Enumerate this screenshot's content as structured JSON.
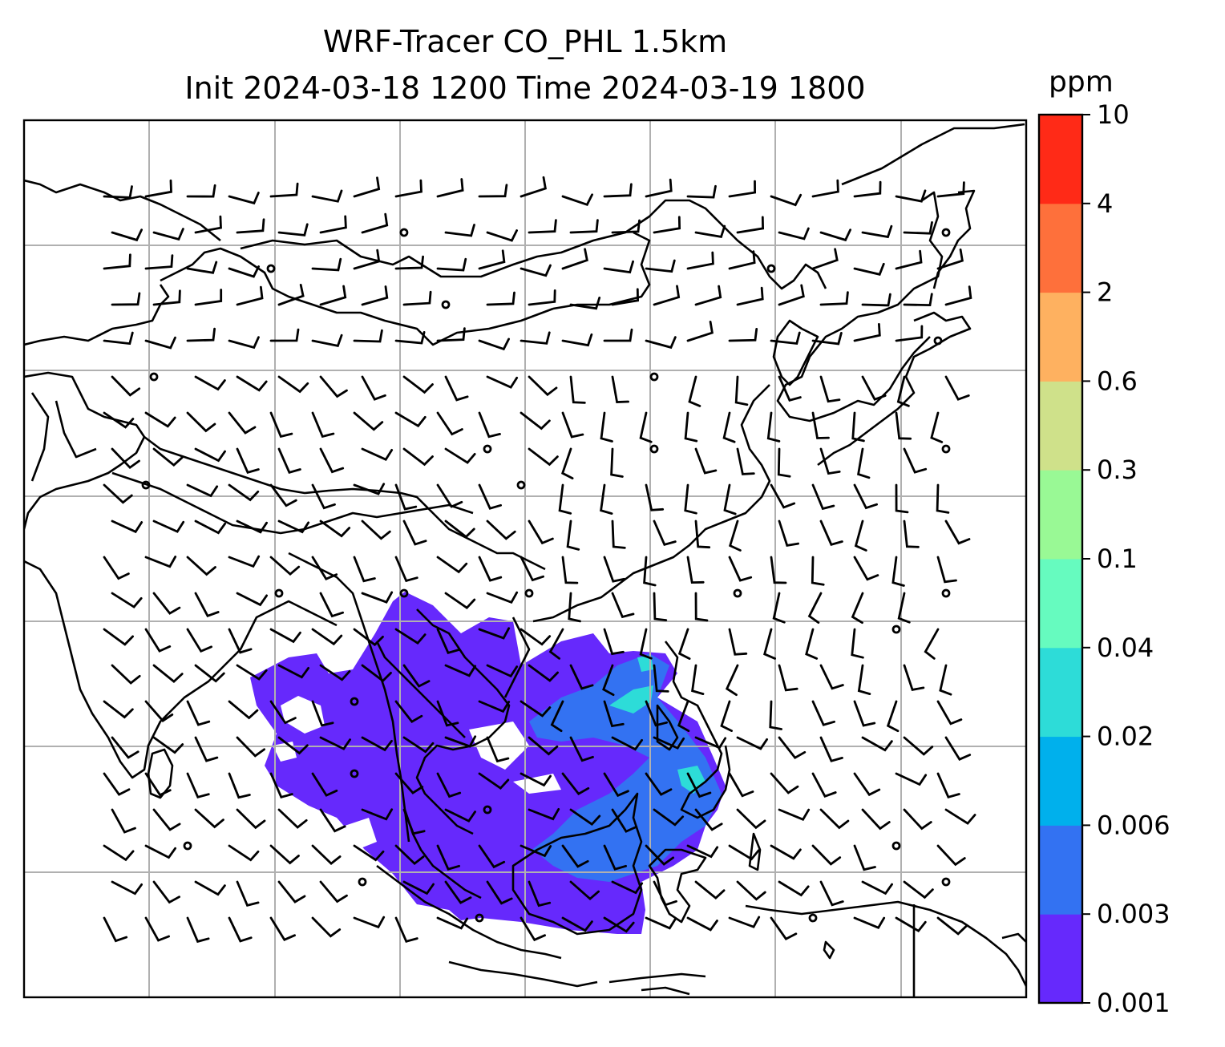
{
  "title_line1": "WRF-Tracer CO_PHL 1.5km",
  "title_line2": "Init 2024-03-18 1200 Time 2024-03-19 1800",
  "colorbar": {
    "unit": "ppm",
    "levels": [
      "0.001",
      "0.003",
      "0.006",
      "0.02",
      "0.04",
      "0.1",
      "0.3",
      "0.6",
      "2",
      "4",
      "10"
    ],
    "colors": [
      "#6629fc",
      "#3372f2",
      "#00b0ec",
      "#2ddcd8",
      "#66fbbf",
      "#99f995",
      "#cfe18a",
      "#feb160",
      "#fe703b",
      "#ff2a17"
    ]
  },
  "map": {
    "land_outline_color": "#000000",
    "gridline_color": "#b0b0b0",
    "plume_base_color": "#6629fc",
    "plume_mid_color": "#3372f2",
    "plume_high_color": "#2ddcd8"
  }
}
